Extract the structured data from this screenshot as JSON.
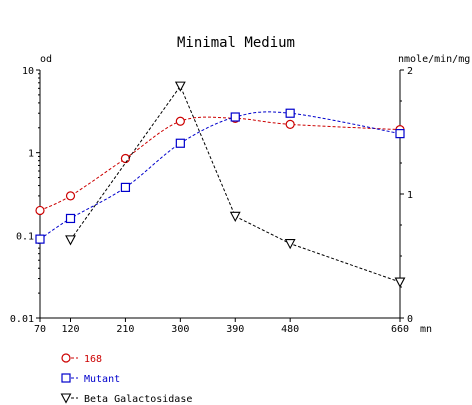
{
  "chart_data": {
    "type": "line",
    "title": "Minimal Medium",
    "xlabel": "mn",
    "ylabel_left": "od",
    "ylabel_right": "nmole/min/mg",
    "x_ticks": [
      70,
      120,
      210,
      300,
      390,
      480,
      660
    ],
    "x_tick_labels": [
      "70",
      "120",
      "210",
      "300",
      "390",
      "480",
      "660"
    ],
    "xlim": [
      70,
      660
    ],
    "y_left": {
      "scale": "log",
      "lim": [
        0.01,
        10
      ],
      "tick_values": [
        0.01,
        0.1,
        1,
        10
      ],
      "tick_labels": [
        "0.01",
        "0.1",
        "1",
        "10"
      ]
    },
    "y_right": {
      "scale": "linear",
      "lim": [
        0,
        2
      ],
      "tick_values": [
        0,
        1,
        2
      ],
      "tick_labels": [
        "0",
        "1",
        "2"
      ]
    },
    "grid": false,
    "legend_position": "bottom-left",
    "series": [
      {
        "name": "168",
        "axis": "left",
        "marker": "circle",
        "color": "#cc0000",
        "x": [
          70,
          120,
          210,
          300,
          390,
          480,
          660
        ],
        "values": [
          0.2,
          0.3,
          0.85,
          2.4,
          2.6,
          2.2,
          1.9
        ]
      },
      {
        "name": "Mutant",
        "axis": "left",
        "marker": "square",
        "color": "#0000cc",
        "x": [
          70,
          120,
          210,
          300,
          390,
          480,
          660
        ],
        "values": [
          0.09,
          0.16,
          0.38,
          1.3,
          2.7,
          3.0,
          1.7
        ]
      },
      {
        "name": "Beta Galactosidase",
        "axis": "right",
        "marker": "triangle-down",
        "color": "#000000",
        "x": [
          120,
          300,
          390,
          480,
          660
        ],
        "values": [
          0.63,
          1.87,
          0.82,
          0.6,
          0.29
        ]
      }
    ]
  }
}
